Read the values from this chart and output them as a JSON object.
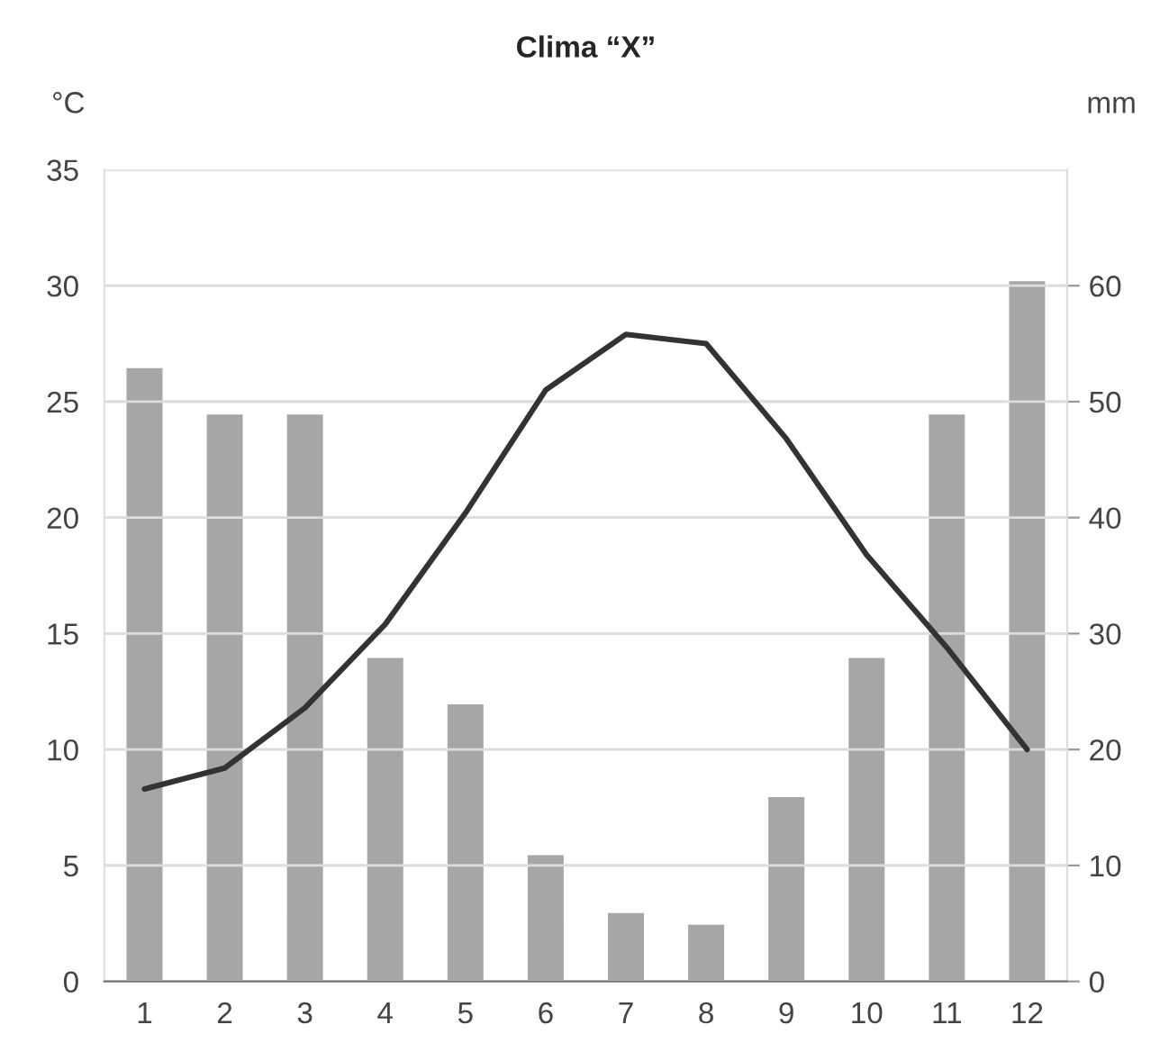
{
  "chart_data": {
    "type": "bar",
    "title": "Clima “X”",
    "ylabel": "°C",
    "y2label": "mm",
    "categories": [
      "1",
      "2",
      "3",
      "4",
      "5",
      "6",
      "7",
      "8",
      "9",
      "10",
      "11",
      "12"
    ],
    "series": [
      {
        "axis": "y2",
        "color": "#a6a6a6",
        "values": [
          53,
          49,
          49,
          28,
          24,
          11,
          6,
          5,
          16,
          28,
          49,
          60.5
        ]
      },
      {
        "type": "line",
        "axis": "y",
        "color": "#333333",
        "values": [
          8.3,
          9.2,
          11.8,
          15.4,
          20.2,
          25.5,
          27.9,
          27.5,
          23.4,
          18.4,
          14.4,
          10.0
        ]
      }
    ],
    "ylim": [
      0,
      35
    ],
    "yticks": [
      0,
      5,
      10,
      15,
      20,
      25,
      30,
      35
    ],
    "y2lim": [
      0,
      70
    ],
    "y2ticks": [
      0,
      10,
      20,
      30,
      40,
      50,
      60
    ],
    "grid": "y",
    "marker": "none",
    "line_style": "solid"
  }
}
